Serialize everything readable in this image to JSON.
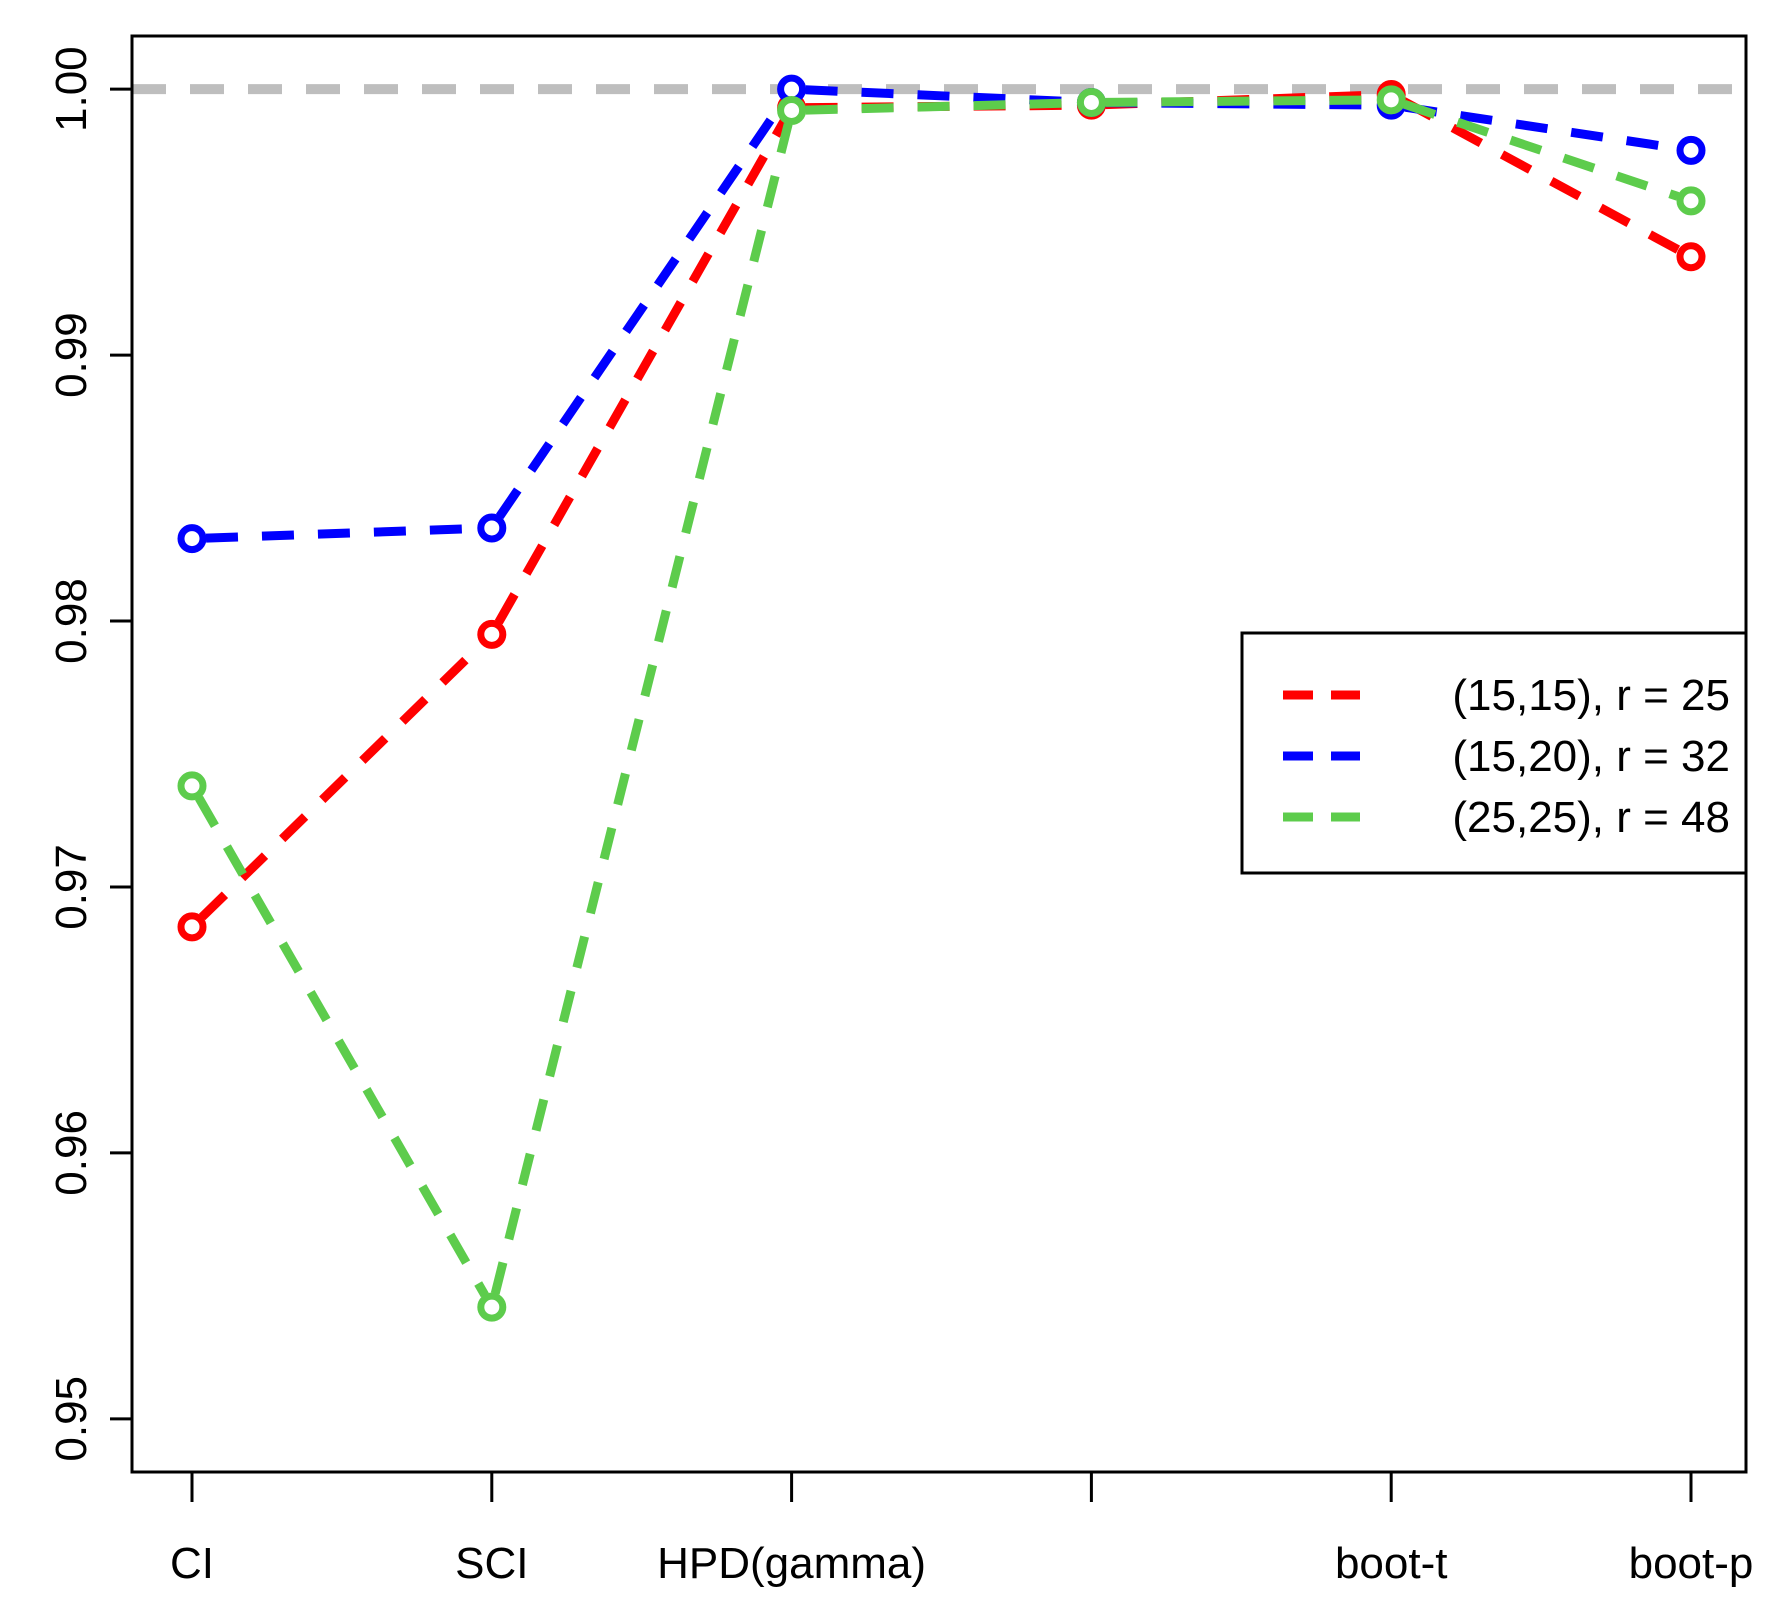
{
  "chart_data": {
    "type": "line",
    "title": "",
    "xlabel": "",
    "ylabel": "",
    "categories": [
      "CI",
      "SCI",
      "HPD(gamma)",
      "",
      "boot-t",
      "boot-p"
    ],
    "ylim": [
      0.948,
      1.002
    ],
    "yticks": [
      0.95,
      0.96,
      0.97,
      0.98,
      0.99,
      1.0
    ],
    "ytick_labels": [
      "0.95",
      "0.96",
      "0.97",
      "0.98",
      "0.99",
      "1.00"
    ],
    "reference_line": {
      "value": 1.0,
      "color": "#bebebe",
      "style": "dashed"
    },
    "legend_position": "right-middle",
    "series": [
      {
        "name": "(15,15), r = 25",
        "color": "#ff0000",
        "values": [
          0.9685,
          0.9795,
          0.9993,
          0.9994,
          0.9998,
          0.9937
        ]
      },
      {
        "name": "(15,20), r = 32",
        "color": "#0000ff",
        "values": [
          0.9831,
          0.9835,
          1.0,
          0.9995,
          0.9994,
          0.9977
        ]
      },
      {
        "name": "(25,25), r = 48",
        "color": "#5dcc4c",
        "values": [
          0.9738,
          0.9542,
          0.9992,
          0.9995,
          0.9996,
          0.9958
        ]
      }
    ]
  }
}
